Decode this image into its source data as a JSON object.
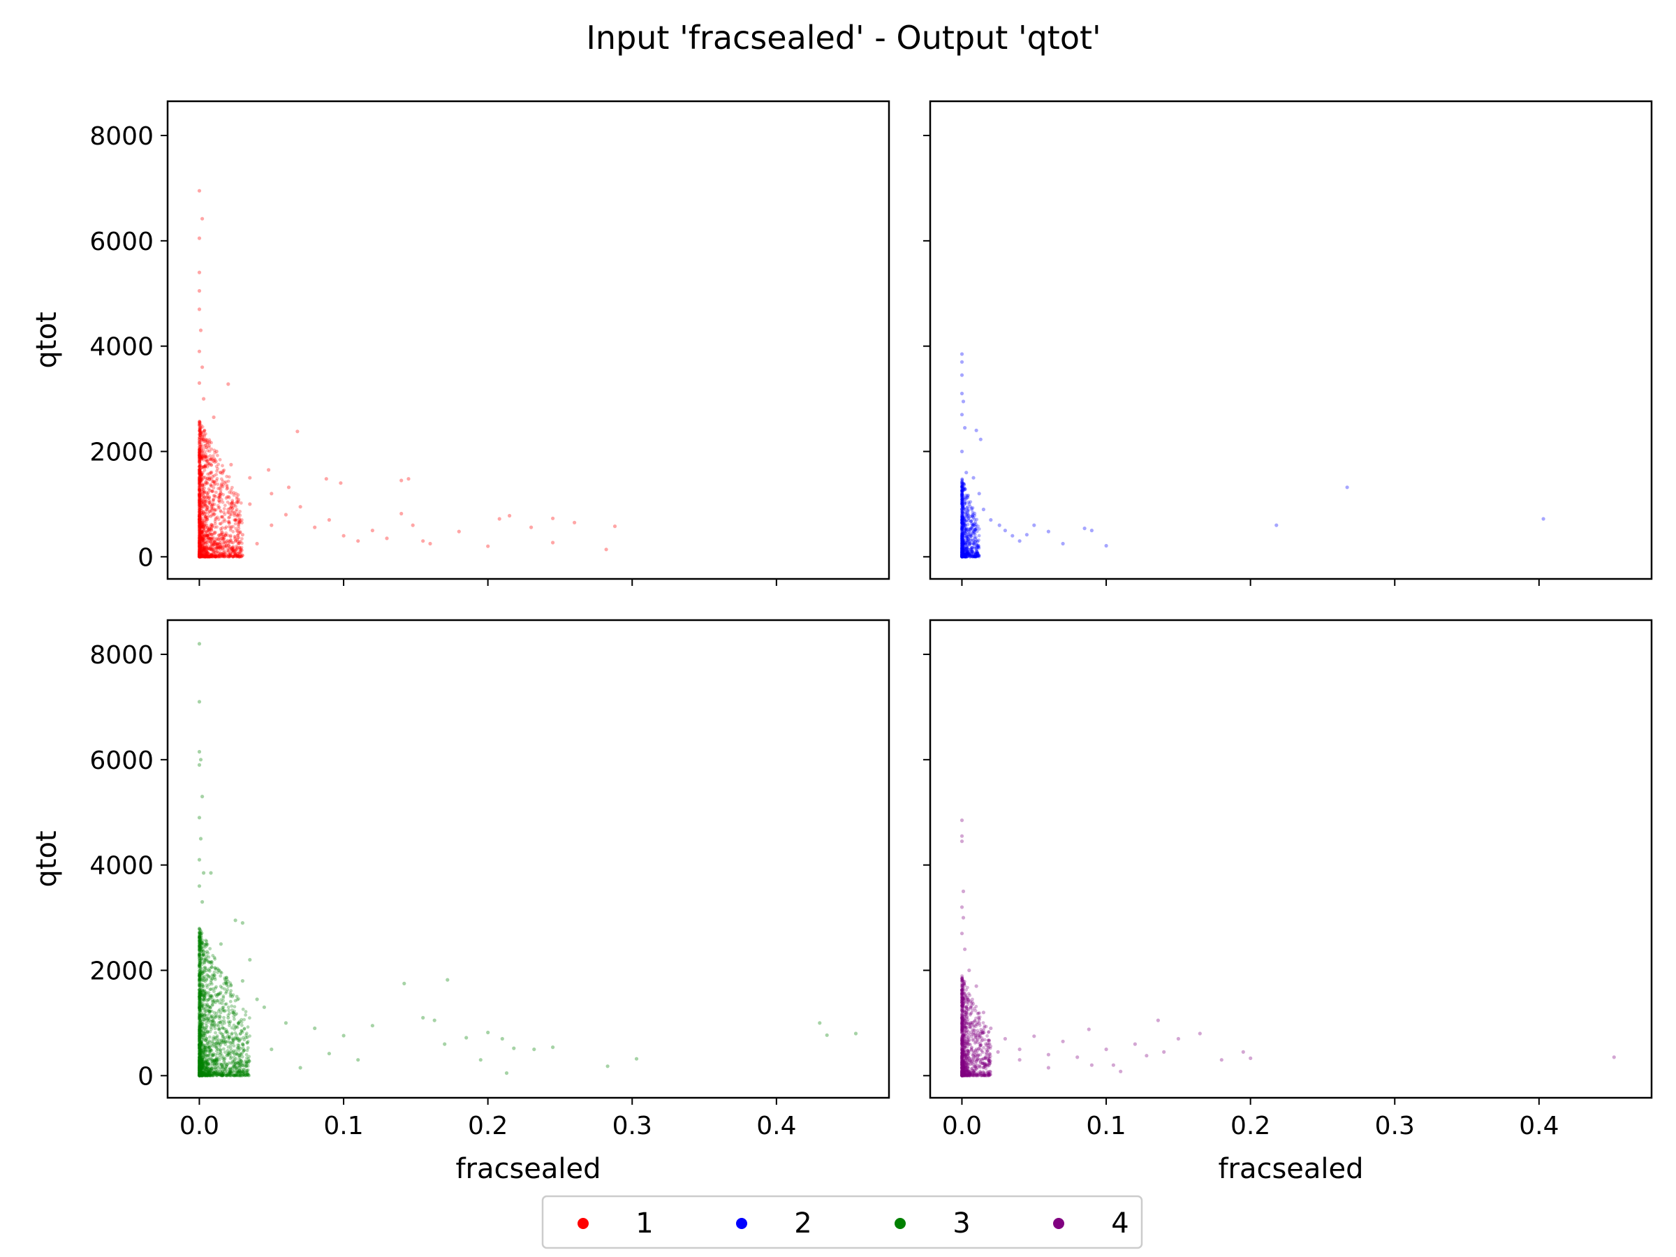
{
  "chart_data": {
    "type": "scatter",
    "title": "Input 'fracsealed' - Output 'qtot'",
    "xlabel": "fracsealed",
    "ylabel": "qtot",
    "xlim": [
      -0.022,
      0.478
    ],
    "ylim": [
      -420,
      8650
    ],
    "x_ticks": [
      0.0,
      0.1,
      0.2,
      0.3,
      0.4
    ],
    "x_tick_labels": [
      "0.0",
      "0.1",
      "0.2",
      "0.3",
      "0.4"
    ],
    "y_ticks": [
      0,
      2000,
      4000,
      6000,
      8000
    ],
    "y_tick_labels": [
      "0",
      "2000",
      "4000",
      "6000",
      "8000"
    ],
    "sharex": true,
    "sharey": true,
    "legend": {
      "placement": "bottom-center",
      "columns": 4
    },
    "panels": [
      {
        "name": "1",
        "color": "#ff0000",
        "points": [
          [
            0.0,
            6950
          ],
          [
            0.002,
            6420
          ],
          [
            0.0,
            6050
          ],
          [
            0.0,
            5400
          ],
          [
            0.0,
            5050
          ],
          [
            0.0,
            4700
          ],
          [
            0.001,
            4300
          ],
          [
            0.0,
            3900
          ],
          [
            0.002,
            3600
          ],
          [
            0.0,
            3300
          ],
          [
            0.003,
            3000
          ],
          [
            0.02,
            3280
          ],
          [
            0.068,
            2380
          ],
          [
            0.01,
            2650
          ],
          [
            0.001,
            2500
          ],
          [
            0.004,
            2200
          ],
          [
            0.012,
            2000
          ],
          [
            0.022,
            1750
          ],
          [
            0.035,
            1500
          ],
          [
            0.05,
            1200
          ],
          [
            0.062,
            1320
          ],
          [
            0.088,
            1480
          ],
          [
            0.098,
            1400
          ],
          [
            0.14,
            1450
          ],
          [
            0.145,
            1480
          ],
          [
            0.048,
            1650
          ],
          [
            0.035,
            1000
          ],
          [
            0.06,
            800
          ],
          [
            0.07,
            950
          ],
          [
            0.09,
            700
          ],
          [
            0.1,
            400
          ],
          [
            0.11,
            300
          ],
          [
            0.12,
            500
          ],
          [
            0.13,
            350
          ],
          [
            0.14,
            820
          ],
          [
            0.148,
            600
          ],
          [
            0.155,
            300
          ],
          [
            0.16,
            250
          ],
          [
            0.18,
            480
          ],
          [
            0.2,
            200
          ],
          [
            0.208,
            720
          ],
          [
            0.215,
            780
          ],
          [
            0.23,
            560
          ],
          [
            0.245,
            730
          ],
          [
            0.26,
            650
          ],
          [
            0.245,
            270
          ],
          [
            0.282,
            140
          ],
          [
            0.288,
            580
          ],
          [
            0.08,
            560
          ],
          [
            0.05,
            600
          ],
          [
            0.04,
            250
          ],
          [
            0.03,
            420
          ],
          [
            0.02,
            900
          ],
          [
            0.015,
            1200
          ],
          [
            0.01,
            800
          ],
          [
            0.005,
            600
          ],
          [
            0.003,
            1500
          ],
          [
            0.001,
            2300
          ],
          [
            0.0,
            1800
          ],
          [
            0.0,
            1200
          ],
          [
            0.0,
            700
          ],
          [
            0.0,
            300
          ],
          [
            0.0,
            100
          ]
        ],
        "core": {
          "x_max": 0.03,
          "y_max": 2600,
          "n": 1500
        }
      },
      {
        "name": "2",
        "color": "#0000ff",
        "points": [
          [
            0.0,
            3850
          ],
          [
            0.0,
            3700
          ],
          [
            0.0,
            3450
          ],
          [
            0.0,
            3100
          ],
          [
            0.001,
            2950
          ],
          [
            0.0,
            2700
          ],
          [
            0.002,
            2450
          ],
          [
            0.01,
            2400
          ],
          [
            0.013,
            2230
          ],
          [
            0.008,
            1500
          ],
          [
            0.012,
            1200
          ],
          [
            0.015,
            900
          ],
          [
            0.02,
            700
          ],
          [
            0.026,
            600
          ],
          [
            0.03,
            500
          ],
          [
            0.035,
            400
          ],
          [
            0.04,
            300
          ],
          [
            0.045,
            420
          ],
          [
            0.05,
            600
          ],
          [
            0.06,
            480
          ],
          [
            0.07,
            250
          ],
          [
            0.085,
            540
          ],
          [
            0.09,
            500
          ],
          [
            0.1,
            210
          ],
          [
            0.267,
            1320
          ],
          [
            0.218,
            600
          ],
          [
            0.403,
            720
          ],
          [
            0.005,
            1000
          ],
          [
            0.003,
            1600
          ],
          [
            0.0,
            2000
          ],
          [
            0.0,
            1200
          ],
          [
            0.0,
            700
          ],
          [
            0.0,
            300
          ],
          [
            0.0,
            100
          ]
        ],
        "core": {
          "x_max": 0.012,
          "y_max": 1500,
          "n": 700
        }
      },
      {
        "name": "3",
        "color": "#008000",
        "points": [
          [
            0.0,
            8200
          ],
          [
            0.0,
            7100
          ],
          [
            0.0,
            6150
          ],
          [
            0.001,
            6000
          ],
          [
            0.0,
            5900
          ],
          [
            0.002,
            5300
          ],
          [
            0.0,
            4900
          ],
          [
            0.001,
            4500
          ],
          [
            0.0,
            4100
          ],
          [
            0.003,
            3850
          ],
          [
            0.008,
            3850
          ],
          [
            0.0,
            3600
          ],
          [
            0.002,
            3300
          ],
          [
            0.025,
            2950
          ],
          [
            0.03,
            2900
          ],
          [
            0.015,
            2500
          ],
          [
            0.035,
            2200
          ],
          [
            0.03,
            1800
          ],
          [
            0.04,
            1450
          ],
          [
            0.045,
            1300
          ],
          [
            0.06,
            1000
          ],
          [
            0.08,
            900
          ],
          [
            0.1,
            760
          ],
          [
            0.12,
            950
          ],
          [
            0.142,
            1750
          ],
          [
            0.172,
            1820
          ],
          [
            0.155,
            1100
          ],
          [
            0.163,
            1050
          ],
          [
            0.17,
            600
          ],
          [
            0.185,
            720
          ],
          [
            0.2,
            820
          ],
          [
            0.21,
            700
          ],
          [
            0.218,
            520
          ],
          [
            0.232,
            500
          ],
          [
            0.245,
            540
          ],
          [
            0.195,
            300
          ],
          [
            0.213,
            50
          ],
          [
            0.283,
            180
          ],
          [
            0.303,
            320
          ],
          [
            0.43,
            1000
          ],
          [
            0.435,
            770
          ],
          [
            0.455,
            800
          ],
          [
            0.11,
            300
          ],
          [
            0.09,
            420
          ],
          [
            0.07,
            150
          ],
          [
            0.05,
            500
          ],
          [
            0.03,
            600
          ],
          [
            0.02,
            1100
          ],
          [
            0.01,
            1400
          ],
          [
            0.005,
            2000
          ],
          [
            0.0,
            2600
          ],
          [
            0.0,
            1500
          ],
          [
            0.0,
            800
          ],
          [
            0.0,
            300
          ],
          [
            0.0,
            100
          ]
        ],
        "core": {
          "x_max": 0.035,
          "y_max": 2800,
          "n": 1700
        }
      },
      {
        "name": "4",
        "color": "#800080",
        "points": [
          [
            0.0,
            4850
          ],
          [
            0.0,
            4550
          ],
          [
            0.0,
            4450
          ],
          [
            0.001,
            3500
          ],
          [
            0.0,
            3200
          ],
          [
            0.001,
            3000
          ],
          [
            0.0,
            2700
          ],
          [
            0.002,
            2400
          ],
          [
            0.005,
            2000
          ],
          [
            0.01,
            1700
          ],
          [
            0.015,
            1200
          ],
          [
            0.02,
            900
          ],
          [
            0.03,
            700
          ],
          [
            0.04,
            500
          ],
          [
            0.05,
            750
          ],
          [
            0.06,
            400
          ],
          [
            0.07,
            650
          ],
          [
            0.08,
            350
          ],
          [
            0.088,
            880
          ],
          [
            0.1,
            500
          ],
          [
            0.105,
            200
          ],
          [
            0.12,
            600
          ],
          [
            0.128,
            380
          ],
          [
            0.136,
            1050
          ],
          [
            0.14,
            450
          ],
          [
            0.15,
            700
          ],
          [
            0.165,
            800
          ],
          [
            0.18,
            300
          ],
          [
            0.195,
            450
          ],
          [
            0.2,
            330
          ],
          [
            0.452,
            350
          ],
          [
            0.11,
            80
          ],
          [
            0.09,
            200
          ],
          [
            0.06,
            150
          ],
          [
            0.04,
            300
          ],
          [
            0.025,
            450
          ],
          [
            0.012,
            1000
          ],
          [
            0.004,
            1400
          ],
          [
            0.0,
            1800
          ],
          [
            0.0,
            1100
          ],
          [
            0.0,
            600
          ],
          [
            0.0,
            250
          ],
          [
            0.0,
            80
          ]
        ],
        "core": {
          "x_max": 0.02,
          "y_max": 1900,
          "n": 1000
        }
      }
    ]
  }
}
